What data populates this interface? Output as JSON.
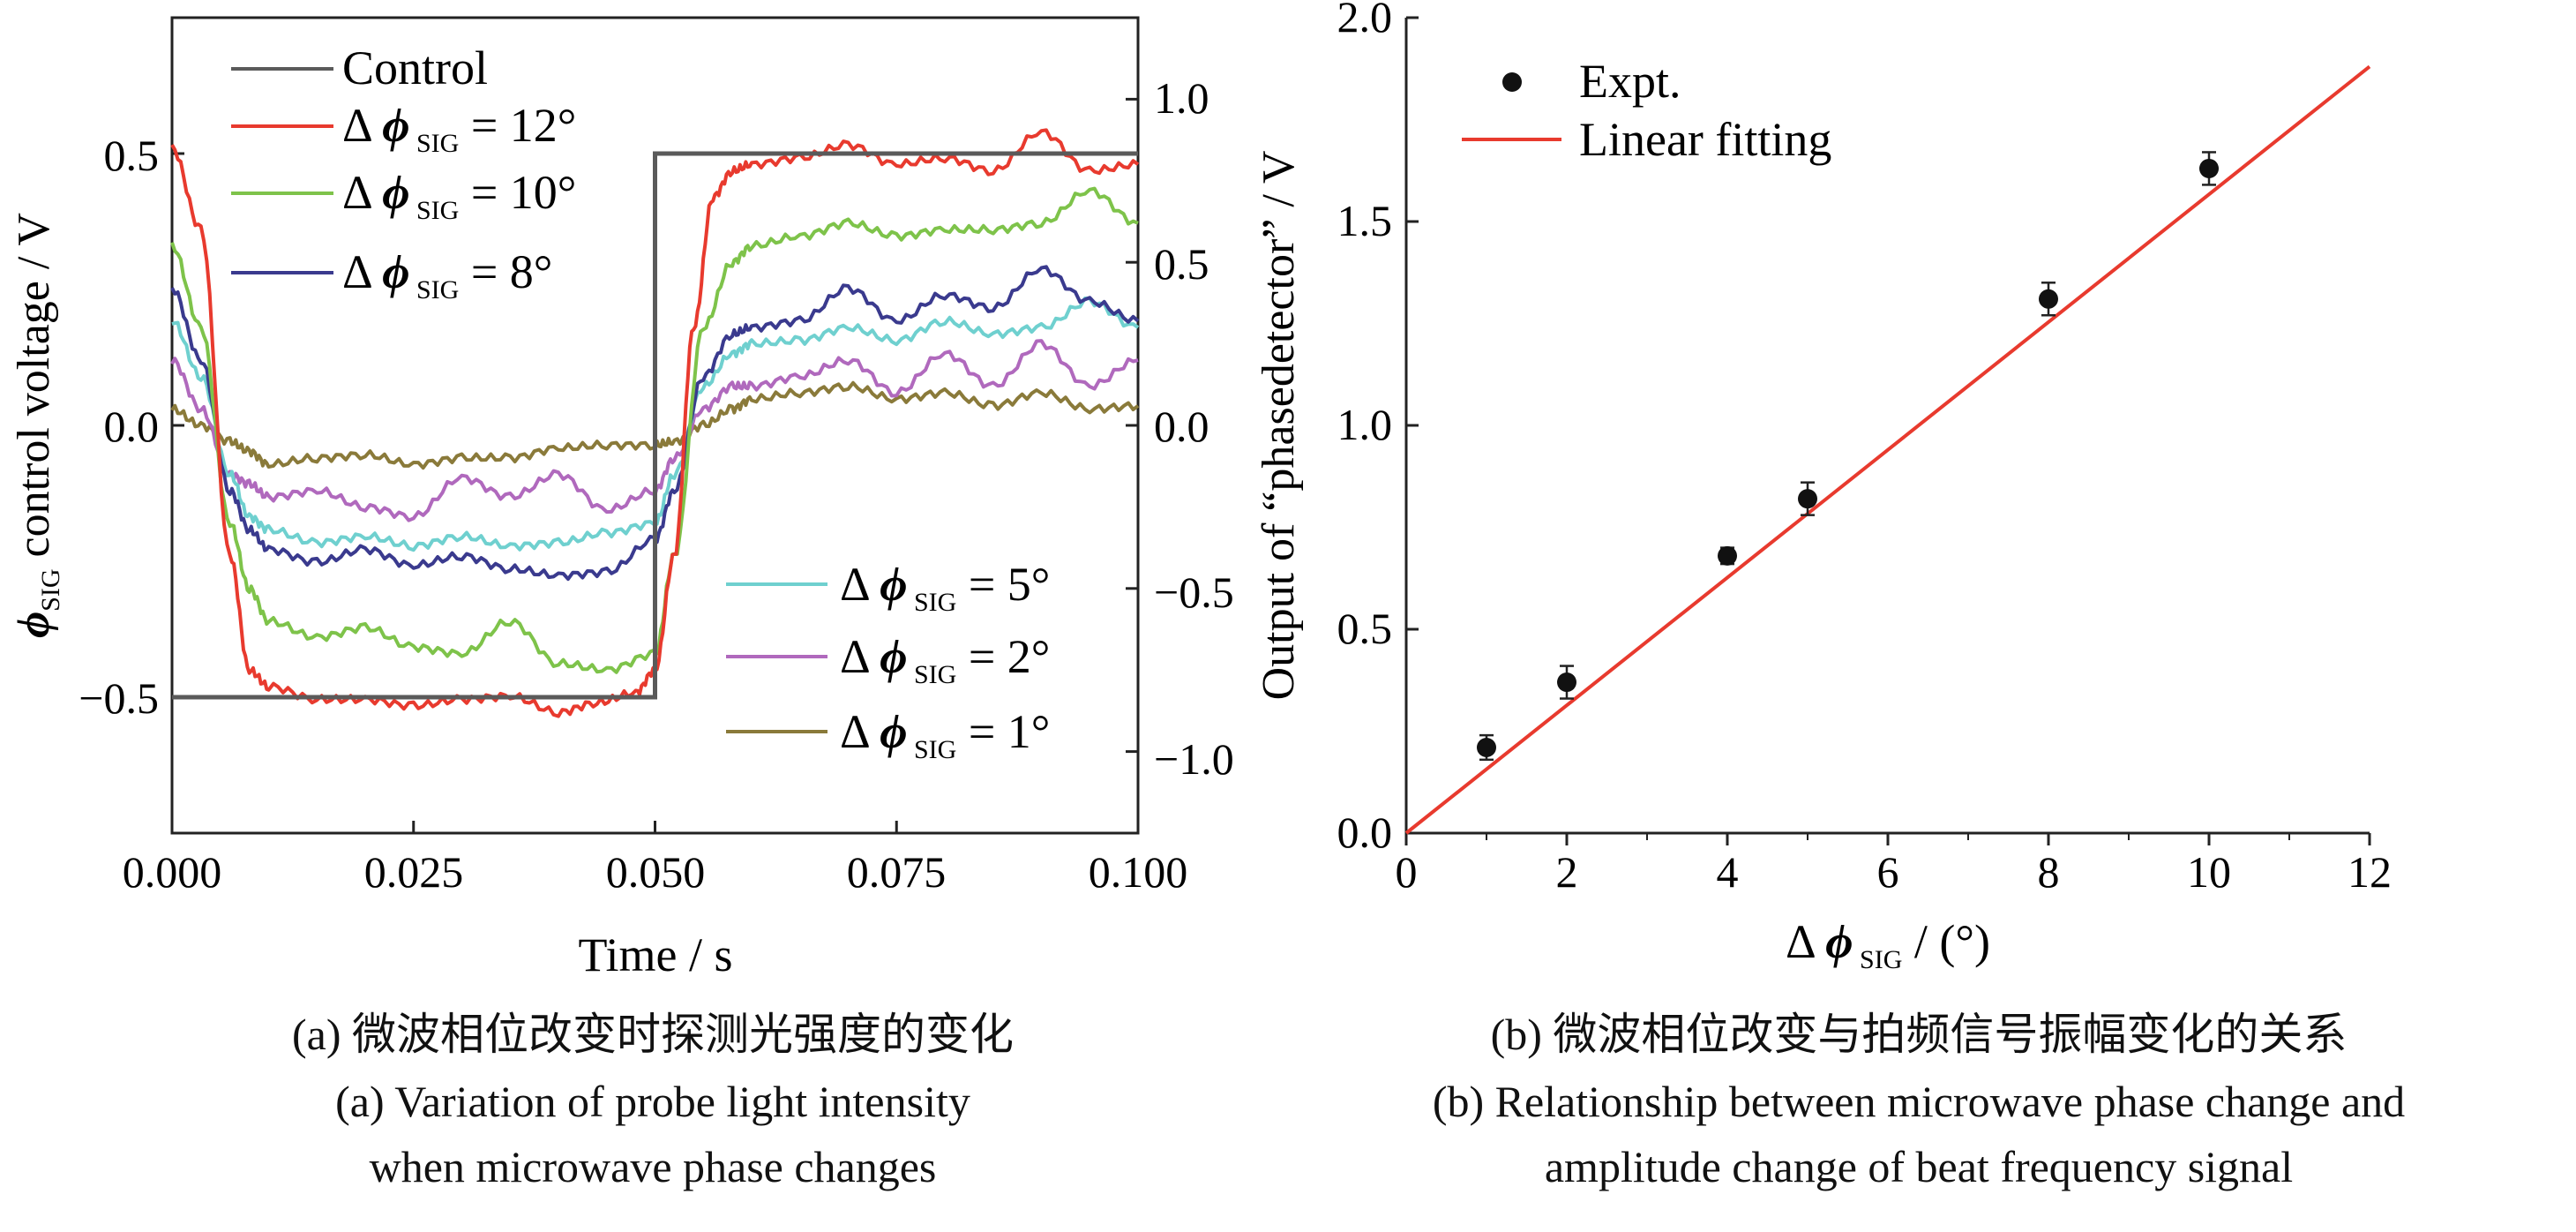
{
  "captions": {
    "a_cn": "(a) 微波相位改变时探测光强度的变化",
    "a_en1": "(a) Variation of probe light intensity",
    "a_en2": "when microwave phase changes",
    "b_cn": "(b) 微波相位改变与拍频信号振幅变化的关系",
    "b_en1": "(b) Relationship between microwave phase change and",
    "b_en2": "amplitude change of beat frequency signal"
  },
  "chart_data": [
    {
      "type": "line",
      "xlabel": "Time / s",
      "ylabel_left": "ϕSIG control voltage / V",
      "xlim": [
        0.0,
        0.1
      ],
      "ylim_left": [
        -0.75,
        0.75
      ],
      "ylim_right": [
        -1.25,
        1.25
      ],
      "xticks": [
        "0.000",
        "0.025",
        "0.050",
        "0.075",
        "0.100"
      ],
      "yticks_left": [
        "−0.5",
        "0.0",
        "0.5"
      ],
      "yticks_right": [
        "−1.0",
        "−0.5",
        "0.0",
        "0.5",
        "1.0"
      ],
      "legend_top_left": [
        "Control",
        "Δϕ SIG = 12°",
        "Δϕ SIG = 10°",
        "Δϕ SIG = 8°"
      ],
      "legend_bottom_right": [
        "Δϕ SIG = 5°",
        "Δϕ SIG = 2°",
        "Δϕ SIG = 1°"
      ],
      "series": [
        {
          "name": "Control",
          "axis": "left",
          "color": "#5a5a5a",
          "x": [
            0,
            0.05,
            0.05,
            0.1
          ],
          "y": [
            -0.5,
            -0.5,
            0.5,
            0.5
          ]
        },
        {
          "name": "Δϕ SIG = 12°",
          "axis": "right",
          "color": "#e83a2e",
          "x": [
            0,
            0.003,
            0.006,
            0.008,
            0.01,
            0.015,
            0.02,
            0.025,
            0.03,
            0.035,
            0.04,
            0.044,
            0.048,
            0.05,
            0.052,
            0.054,
            0.056,
            0.058,
            0.06,
            0.065,
            0.07,
            0.075,
            0.08,
            0.085,
            0.09,
            0.095,
            0.1
          ],
          "y": [
            0.85,
            0.6,
            -0.4,
            -0.75,
            -0.8,
            -0.84,
            -0.84,
            -0.86,
            -0.84,
            -0.83,
            -0.88,
            -0.85,
            -0.82,
            -0.75,
            -0.4,
            0.3,
            0.7,
            0.78,
            0.8,
            0.82,
            0.86,
            0.8,
            0.82,
            0.78,
            0.9,
            0.78,
            0.8
          ]
        },
        {
          "name": "Δϕ SIG = 10°",
          "axis": "right",
          "color": "#7ec34a",
          "x": [
            0,
            0.003,
            0.006,
            0.008,
            0.01,
            0.015,
            0.02,
            0.025,
            0.03,
            0.035,
            0.04,
            0.045,
            0.05,
            0.052,
            0.055,
            0.058,
            0.06,
            0.065,
            0.07,
            0.075,
            0.08,
            0.085,
            0.09,
            0.095,
            0.1
          ],
          "y": [
            0.55,
            0.3,
            -0.3,
            -0.5,
            -0.6,
            -0.65,
            -0.62,
            -0.68,
            -0.7,
            -0.6,
            -0.73,
            -0.75,
            -0.7,
            -0.4,
            0.3,
            0.5,
            0.55,
            0.58,
            0.62,
            0.58,
            0.6,
            0.6,
            0.62,
            0.72,
            0.62
          ]
        },
        {
          "name": "Δϕ SIG = 8°",
          "axis": "right",
          "color": "#3a3a8e",
          "x": [
            0,
            0.003,
            0.006,
            0.008,
            0.01,
            0.015,
            0.02,
            0.025,
            0.03,
            0.035,
            0.04,
            0.045,
            0.05,
            0.052,
            0.055,
            0.058,
            0.06,
            0.065,
            0.07,
            0.075,
            0.08,
            0.085,
            0.09,
            0.095,
            0.1
          ],
          "y": [
            0.42,
            0.2,
            -0.2,
            -0.32,
            -0.38,
            -0.42,
            -0.38,
            -0.43,
            -0.4,
            -0.44,
            -0.46,
            -0.45,
            -0.35,
            -0.2,
            0.15,
            0.28,
            0.3,
            0.32,
            0.42,
            0.32,
            0.4,
            0.36,
            0.48,
            0.38,
            0.32
          ]
        },
        {
          "name": "Δϕ SIG = 5°",
          "axis": "right",
          "color": "#6fd0cf",
          "x": [
            0,
            0.003,
            0.006,
            0.008,
            0.01,
            0.015,
            0.02,
            0.025,
            0.03,
            0.035,
            0.04,
            0.045,
            0.05,
            0.052,
            0.055,
            0.058,
            0.06,
            0.065,
            0.07,
            0.075,
            0.08,
            0.085,
            0.09,
            0.095,
            0.1
          ],
          "y": [
            0.32,
            0.15,
            -0.15,
            -0.28,
            -0.32,
            -0.36,
            -0.34,
            -0.37,
            -0.34,
            -0.37,
            -0.36,
            -0.33,
            -0.3,
            -0.15,
            0.12,
            0.22,
            0.25,
            0.26,
            0.3,
            0.26,
            0.32,
            0.28,
            0.3,
            0.38,
            0.3
          ]
        },
        {
          "name": "Δϕ SIG = 2°",
          "axis": "right",
          "color": "#b069bd",
          "x": [
            0,
            0.003,
            0.006,
            0.008,
            0.01,
            0.015,
            0.02,
            0.025,
            0.03,
            0.035,
            0.04,
            0.045,
            0.05,
            0.052,
            0.055,
            0.058,
            0.06,
            0.065,
            0.07,
            0.075,
            0.08,
            0.085,
            0.09,
            0.095,
            0.1
          ],
          "y": [
            0.2,
            0.05,
            -0.15,
            -0.18,
            -0.22,
            -0.2,
            -0.25,
            -0.28,
            -0.16,
            -0.22,
            -0.15,
            -0.26,
            -0.2,
            -0.1,
            0.05,
            0.12,
            0.12,
            0.15,
            0.2,
            0.1,
            0.22,
            0.12,
            0.25,
            0.12,
            0.2
          ]
        },
        {
          "name": "Δϕ SIG = 1°",
          "axis": "right",
          "color": "#8a7a3a",
          "x": [
            0,
            0.003,
            0.006,
            0.008,
            0.01,
            0.015,
            0.02,
            0.025,
            0.03,
            0.035,
            0.04,
            0.045,
            0.05,
            0.052,
            0.055,
            0.058,
            0.06,
            0.065,
            0.07,
            0.075,
            0.08,
            0.085,
            0.09,
            0.095,
            0.1
          ],
          "y": [
            0.05,
            0.0,
            -0.05,
            -0.08,
            -0.12,
            -0.1,
            -0.09,
            -0.12,
            -0.1,
            -0.1,
            -0.07,
            -0.06,
            -0.06,
            -0.05,
            0.0,
            0.05,
            0.08,
            0.1,
            0.12,
            0.08,
            0.1,
            0.06,
            0.1,
            0.05,
            0.06
          ]
        }
      ]
    },
    {
      "type": "scatter",
      "xlabel": "Δϕ SIG / (°)",
      "ylabel": "Output of “phasedetector” / V",
      "xlim": [
        0,
        12
      ],
      "ylim": [
        0.0,
        2.0
      ],
      "xticks": [
        "0",
        "2",
        "4",
        "6",
        "8",
        "10",
        "12"
      ],
      "yticks": [
        "0.0",
        "0.5",
        "1.0",
        "1.5",
        "2.0"
      ],
      "legend": [
        "Expt.",
        "Linear fitting"
      ],
      "points": {
        "name": "Expt.",
        "x": [
          1,
          2,
          4,
          5,
          8,
          10
        ],
        "y": [
          0.21,
          0.37,
          0.68,
          0.82,
          1.31,
          1.63
        ],
        "err": [
          0.03,
          0.04,
          0.02,
          0.04,
          0.04,
          0.04
        ]
      },
      "fit": {
        "name": "Linear fitting",
        "x": [
          0,
          12
        ],
        "y": [
          0.0,
          1.88
        ],
        "color": "#e83a2e"
      }
    }
  ]
}
